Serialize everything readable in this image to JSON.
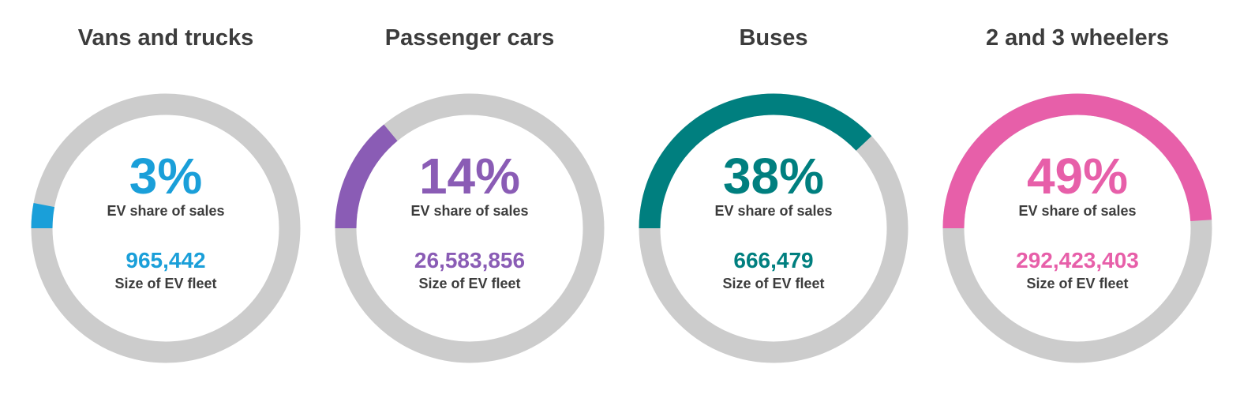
{
  "chart_data": [
    {
      "type": "gauge",
      "title": "Vans and trucks",
      "value": 3,
      "value_label": "3%",
      "value_caption": "EV share of sales",
      "fleet_value": "965,442",
      "fleet_caption": "Size of EV fleet",
      "color": "#1a9fd9",
      "track_color": "#cccccc"
    },
    {
      "type": "gauge",
      "title": "Passenger cars",
      "value": 14,
      "value_label": "14%",
      "value_caption": "EV share of sales",
      "fleet_value": "26,583,856",
      "fleet_caption": "Size of EV fleet",
      "color": "#8a5cb5",
      "track_color": "#cccccc"
    },
    {
      "type": "gauge",
      "title": "Buses",
      "value": 38,
      "value_label": "38%",
      "value_caption": "EV share of sales",
      "fleet_value": "666,479",
      "fleet_caption": "Size of EV fleet",
      "color": "#007f7f",
      "track_color": "#cccccc"
    },
    {
      "type": "gauge",
      "title": "2 and 3 wheelers",
      "value": 49,
      "value_label": "49%",
      "value_caption": "EV share of sales",
      "fleet_value": "292,423,403",
      "fleet_caption": "Size of EV fleet",
      "color": "#e75fa9",
      "track_color": "#cccccc"
    }
  ]
}
